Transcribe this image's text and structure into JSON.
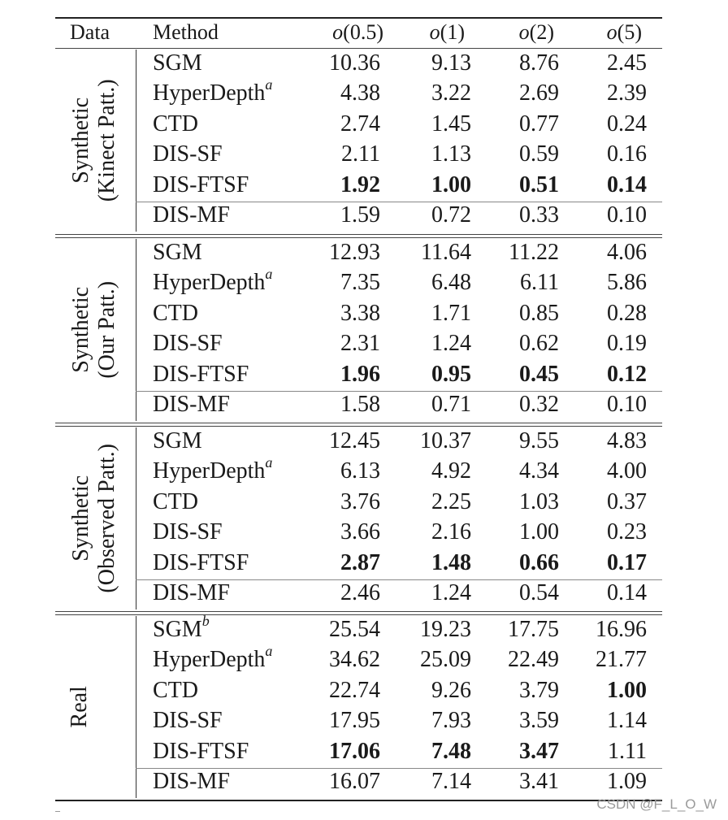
{
  "header": {
    "data": "Data",
    "method": "Method",
    "columns": [
      {
        "fn": "o",
        "arg": "(0.5)"
      },
      {
        "fn": "o",
        "arg": "(1)"
      },
      {
        "fn": "o",
        "arg": "(2)"
      },
      {
        "fn": "o",
        "arg": "(5)"
      }
    ]
  },
  "groups": [
    {
      "label_line1": "Synthetic",
      "label_line2": "(Kinect Patt.)",
      "rows": [
        {
          "method": "SGM",
          "sup": "",
          "values": [
            "10.36",
            "9.13",
            "8.76",
            "2.45"
          ],
          "bold": [
            false,
            false,
            false,
            false
          ]
        },
        {
          "method": "HyperDepth",
          "sup": "a",
          "values": [
            "4.38",
            "3.22",
            "2.69",
            "2.39"
          ],
          "bold": [
            false,
            false,
            false,
            false
          ]
        },
        {
          "method": "CTD",
          "sup": "",
          "values": [
            "2.74",
            "1.45",
            "0.77",
            "0.24"
          ],
          "bold": [
            false,
            false,
            false,
            false
          ]
        },
        {
          "method": "DIS-SF",
          "sup": "",
          "values": [
            "2.11",
            "1.13",
            "0.59",
            "0.16"
          ],
          "bold": [
            false,
            false,
            false,
            false
          ]
        },
        {
          "method": "DIS-FTSF",
          "sup": "",
          "values": [
            "1.92",
            "1.00",
            "0.51",
            "0.14"
          ],
          "bold": [
            true,
            true,
            true,
            true
          ]
        },
        {
          "method": "DIS-MF",
          "sup": "",
          "values": [
            "1.59",
            "0.72",
            "0.33",
            "0.10"
          ],
          "bold": [
            false,
            false,
            false,
            false
          ]
        }
      ]
    },
    {
      "label_line1": "Synthetic",
      "label_line2": "(Our Patt.)",
      "rows": [
        {
          "method": "SGM",
          "sup": "",
          "values": [
            "12.93",
            "11.64",
            "11.22",
            "4.06"
          ],
          "bold": [
            false,
            false,
            false,
            false
          ]
        },
        {
          "method": "HyperDepth",
          "sup": "a",
          "values": [
            "7.35",
            "6.48",
            "6.11",
            "5.86"
          ],
          "bold": [
            false,
            false,
            false,
            false
          ]
        },
        {
          "method": "CTD",
          "sup": "",
          "values": [
            "3.38",
            "1.71",
            "0.85",
            "0.28"
          ],
          "bold": [
            false,
            false,
            false,
            false
          ]
        },
        {
          "method": "DIS-SF",
          "sup": "",
          "values": [
            "2.31",
            "1.24",
            "0.62",
            "0.19"
          ],
          "bold": [
            false,
            false,
            false,
            false
          ]
        },
        {
          "method": "DIS-FTSF",
          "sup": "",
          "values": [
            "1.96",
            "0.95",
            "0.45",
            "0.12"
          ],
          "bold": [
            true,
            true,
            true,
            true
          ]
        },
        {
          "method": "DIS-MF",
          "sup": "",
          "values": [
            "1.58",
            "0.71",
            "0.32",
            "0.10"
          ],
          "bold": [
            false,
            false,
            false,
            false
          ]
        }
      ]
    },
    {
      "label_line1": "Synthetic",
      "label_line2": "(Observed Patt.)",
      "rows": [
        {
          "method": "SGM",
          "sup": "",
          "values": [
            "12.45",
            "10.37",
            "9.55",
            "4.83"
          ],
          "bold": [
            false,
            false,
            false,
            false
          ]
        },
        {
          "method": "HyperDepth",
          "sup": "a",
          "values": [
            "6.13",
            "4.92",
            "4.34",
            "4.00"
          ],
          "bold": [
            false,
            false,
            false,
            false
          ]
        },
        {
          "method": "CTD",
          "sup": "",
          "values": [
            "3.76",
            "2.25",
            "1.03",
            "0.37"
          ],
          "bold": [
            false,
            false,
            false,
            false
          ]
        },
        {
          "method": "DIS-SF",
          "sup": "",
          "values": [
            "3.66",
            "2.16",
            "1.00",
            "0.23"
          ],
          "bold": [
            false,
            false,
            false,
            false
          ]
        },
        {
          "method": "DIS-FTSF",
          "sup": "",
          "values": [
            "2.87",
            "1.48",
            "0.66",
            "0.17"
          ],
          "bold": [
            true,
            true,
            true,
            true
          ]
        },
        {
          "method": "DIS-MF",
          "sup": "",
          "values": [
            "2.46",
            "1.24",
            "0.54",
            "0.14"
          ],
          "bold": [
            false,
            false,
            false,
            false
          ]
        }
      ]
    },
    {
      "label_line1": "Real",
      "label_line2": "",
      "rows": [
        {
          "method": "SGM",
          "sup": "b",
          "values": [
            "25.54",
            "19.23",
            "17.75",
            "16.96"
          ],
          "bold": [
            false,
            false,
            false,
            false
          ]
        },
        {
          "method": "HyperDepth",
          "sup": "a",
          "values": [
            "34.62",
            "25.09",
            "22.49",
            "21.77"
          ],
          "bold": [
            false,
            false,
            false,
            false
          ]
        },
        {
          "method": "CTD",
          "sup": "",
          "values": [
            "22.74",
            "9.26",
            "3.79",
            "1.00"
          ],
          "bold": [
            false,
            false,
            false,
            true
          ]
        },
        {
          "method": "DIS-SF",
          "sup": "",
          "values": [
            "17.95",
            "7.93",
            "3.59",
            "1.14"
          ],
          "bold": [
            false,
            false,
            false,
            false
          ]
        },
        {
          "method": "DIS-FTSF",
          "sup": "",
          "values": [
            "17.06",
            "7.48",
            "3.47",
            "1.11"
          ],
          "bold": [
            true,
            true,
            true,
            false
          ]
        },
        {
          "method": "DIS-MF",
          "sup": "",
          "values": [
            "16.07",
            "7.14",
            "3.41",
            "1.09"
          ],
          "bold": [
            false,
            false,
            false,
            false
          ]
        }
      ]
    }
  ],
  "watermark": "CSDN @F_L_O_W"
}
